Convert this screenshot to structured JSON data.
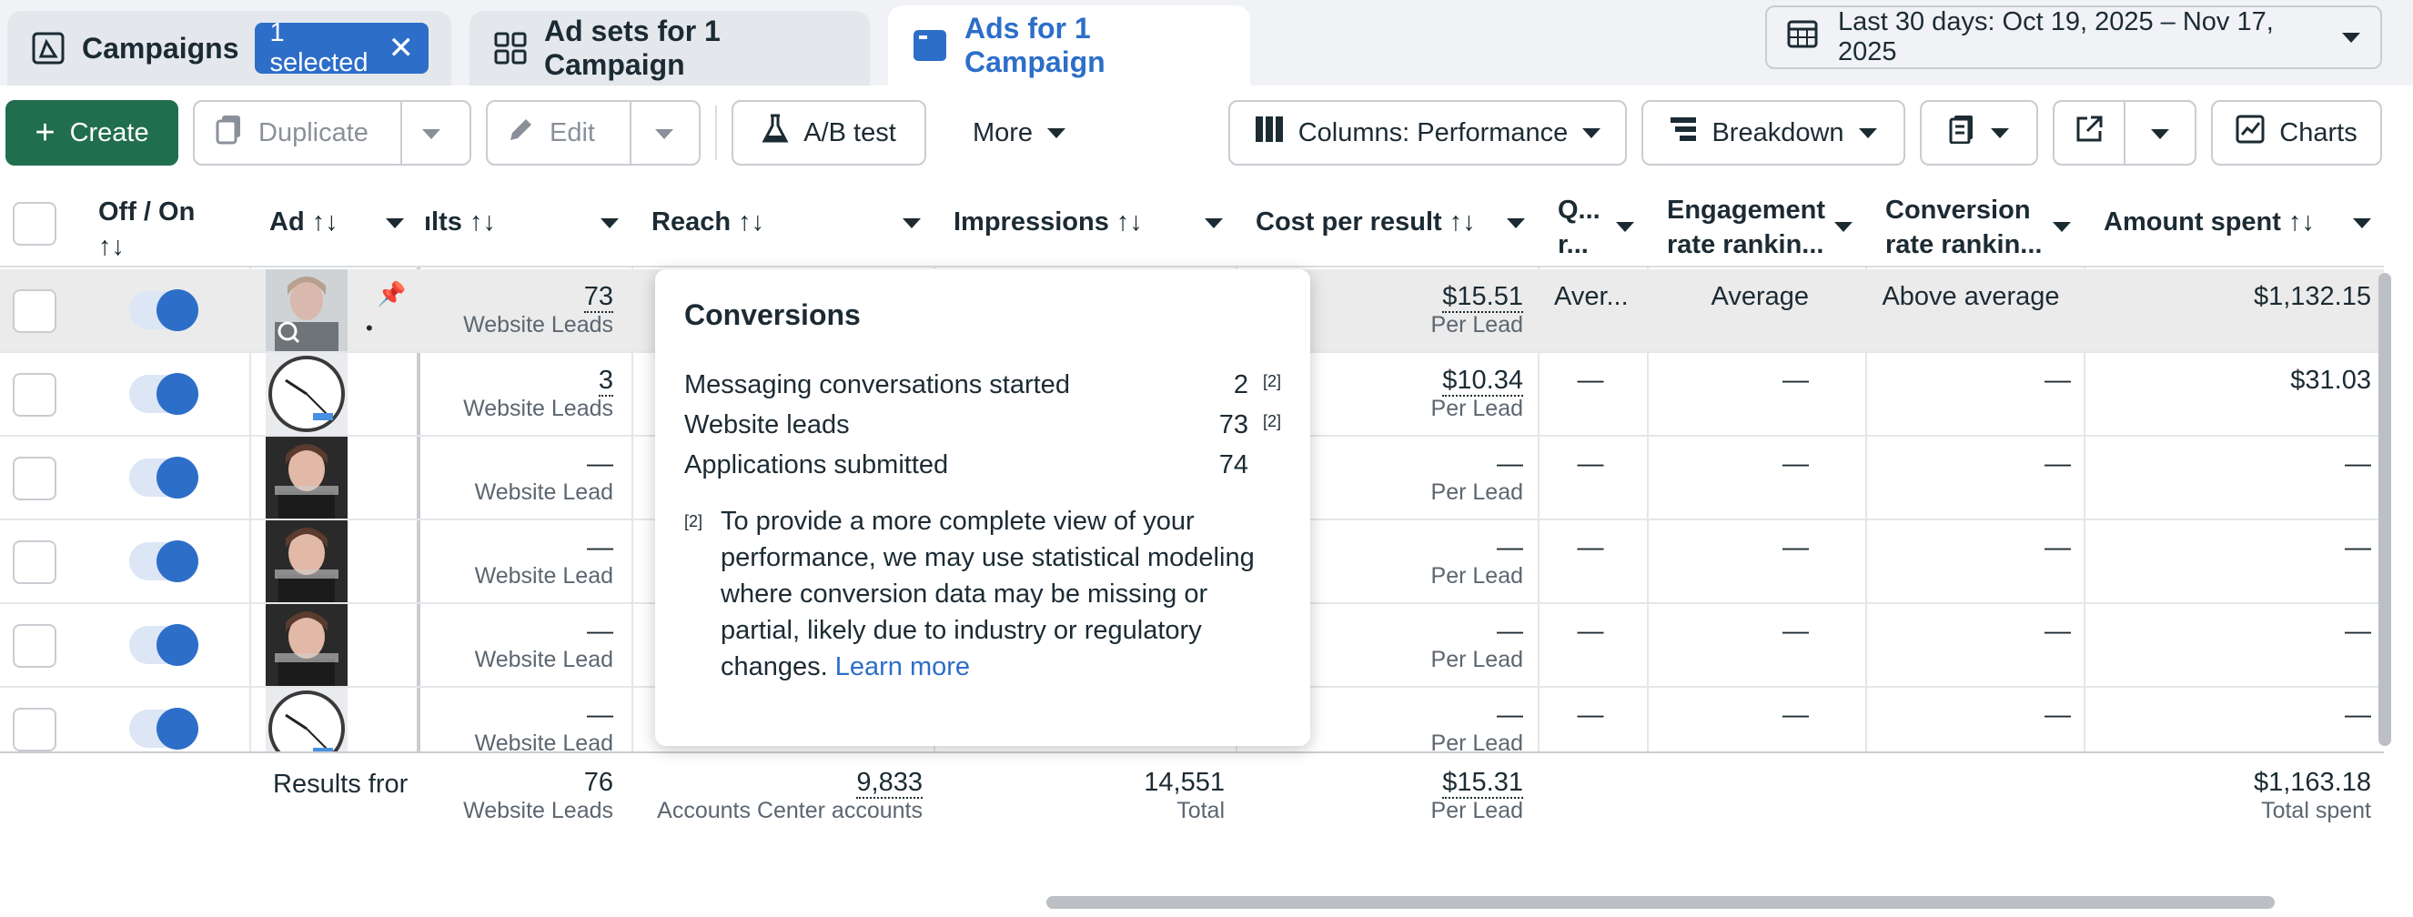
{
  "tabs": {
    "campaigns": "Campaigns",
    "selected_badge": "1 selected",
    "adsets": "Ad sets for 1 Campaign",
    "ads": "Ads for 1 Campaign"
  },
  "date_range": "Last 30 days: Oct 19, 2025 – Nov 17, 2025",
  "toolbar": {
    "create": "Create",
    "duplicate": "Duplicate",
    "edit": "Edit",
    "ab_test": "A/B test",
    "more": "More",
    "columns": "Columns: Performance",
    "breakdown": "Breakdown",
    "charts": "Charts"
  },
  "headers": {
    "off_on": "Off / On",
    "ad": "Ad",
    "results": "ılts",
    "reach": "Reach",
    "impressions": "Impressions",
    "cost_per_result": "Cost per result",
    "quality_1": "Q...",
    "quality_2": "r...",
    "engagement_1": "Engagement",
    "engagement_2": "rate rankin...",
    "conversion_1": "Conversion",
    "conversion_2": "rate rankin...",
    "amount_spent": "Amount spent",
    "sort_icon": "↑↓"
  },
  "rows": [
    {
      "results": "73",
      "results_sub": "Website Leads",
      "cost": "$15.51",
      "cost_sub": "Per Lead",
      "quality": "Aver...",
      "engagement": "Average",
      "conversion": "Above average",
      "spent": "$1,132.15",
      "thumb": "person"
    },
    {
      "results": "3",
      "results_sub": "Website Leads",
      "cost": "$10.34",
      "cost_sub": "Per Lead",
      "quality": "—",
      "engagement": "—",
      "conversion": "—",
      "spent": "$31.03",
      "thumb": "clock"
    },
    {
      "results": "—",
      "results_sub": "Website Lead",
      "cost": "—",
      "cost_sub": "Per Lead",
      "quality": "—",
      "engagement": "—",
      "conversion": "—",
      "spent": "—",
      "thumb": "person-dark"
    },
    {
      "results": "—",
      "results_sub": "Website Lead",
      "cost": "—",
      "cost_sub": "Per Lead",
      "quality": "—",
      "engagement": "—",
      "conversion": "—",
      "spent": "—",
      "thumb": "person-dark"
    },
    {
      "results": "—",
      "results_sub": "Website Lead",
      "cost": "—",
      "cost_sub": "Per Lead",
      "quality": "—",
      "engagement": "—",
      "conversion": "—",
      "spent": "—",
      "thumb": "person-dark"
    },
    {
      "results": "—",
      "results_sub": "Website Lead",
      "cost": "—",
      "cost_sub": "Per Lead",
      "quality": "—",
      "engagement": "—",
      "conversion": "—",
      "spent": "—",
      "thumb": "clock"
    }
  ],
  "totals": {
    "label": "Results fror",
    "results": "76",
    "results_sub": "Website Leads",
    "reach": "9,833",
    "reach_sub": "Accounts Center accounts",
    "impressions": "14,551",
    "impressions_sub": "Total",
    "cost": "$15.31",
    "cost_sub": "Per Lead",
    "spent": "$1,163.18",
    "spent_sub": "Total spent"
  },
  "tooltip": {
    "title": "Conversions",
    "lines": [
      {
        "label": "Messaging conversations started",
        "value": "2",
        "footnote": "[2]"
      },
      {
        "label": "Website leads",
        "value": "73",
        "footnote": "[2]"
      },
      {
        "label": "Applications submitted",
        "value": "74",
        "footnote": ""
      }
    ],
    "note_marker": "[2]",
    "note": "To provide a more complete view of your performance, we may use statistical modeling where conversion data may be missing or partial, likely due to industry or regulatory changes.",
    "learn_more": "Learn more"
  },
  "colors": {
    "accent": "#2d6ec9",
    "create": "#216e4e",
    "toggle_bg": "#dce6f5"
  }
}
